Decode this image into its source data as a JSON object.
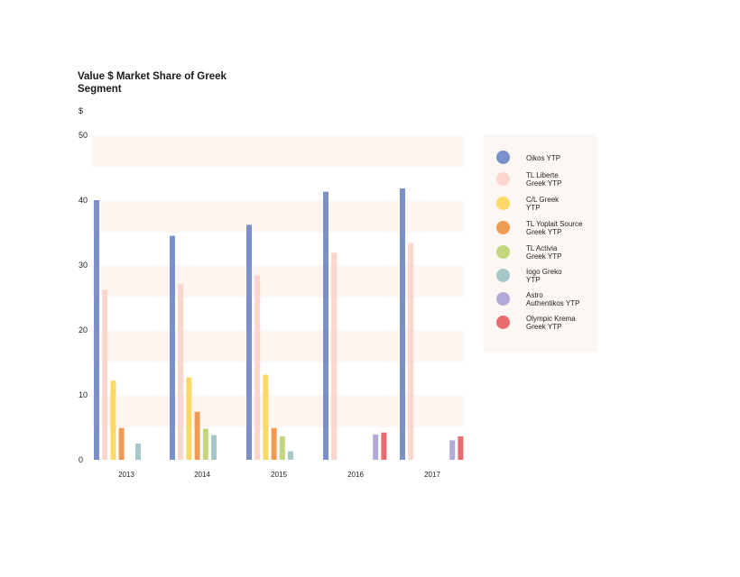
{
  "chart_data": {
    "type": "bar",
    "title": "Value $ Market Share of Greek Segment",
    "ylabel": "$",
    "xlabel": "",
    "ylim": [
      0,
      50
    ],
    "yticks": [
      0,
      10,
      20,
      30,
      40,
      50
    ],
    "categories": [
      "2013",
      "2014",
      "2015",
      "2016",
      "2017"
    ],
    "grid": "alternating shaded horizontal bands",
    "legend_position": "right",
    "series": [
      {
        "name": "Oikos YTP",
        "color": "#7b8fc9",
        "values": [
          40.0,
          34.5,
          36.2,
          41.3,
          41.8
        ]
      },
      {
        "name": "TL Liberte Greek YTP",
        "color": "#fbd6cc",
        "values": [
          26.2,
          27.1,
          28.4,
          31.9,
          33.4
        ]
      },
      {
        "name": "C/L Greek YTP",
        "color": "#fcd967",
        "values": [
          12.2,
          12.7,
          13.1,
          null,
          null
        ]
      },
      {
        "name": "TL Yoplait Source Greek YTP",
        "color": "#ef9a55",
        "values": [
          4.9,
          7.4,
          4.9,
          null,
          null
        ]
      },
      {
        "name": "TL Activia Greek YTP",
        "color": "#c3d67e",
        "values": [
          null,
          4.8,
          3.6,
          null,
          null
        ]
      },
      {
        "name": "Iogo Greko YTP",
        "color": "#a6c7c7",
        "values": [
          2.5,
          3.8,
          1.3,
          null,
          null
        ]
      },
      {
        "name": "Astro Authentikos YTP",
        "color": "#b3a9d8",
        "values": [
          null,
          null,
          null,
          3.9,
          3.0
        ]
      },
      {
        "name": "Olympic Krema Greek YTP",
        "color": "#e86b6d",
        "values": [
          null,
          null,
          null,
          4.2,
          3.6
        ]
      }
    ]
  },
  "legend": {
    "labels": [
      "Oikos YTP",
      "TL Liberte\nGreek YTP",
      "C/L Greek\nYTP",
      "TL Yoplait Source\nGreek YTP",
      "TL Activia\nGreek YTP",
      "Iogo Greko\nYTP",
      "Astro\nAuthentikos YTP",
      "Olympic Krema\nGreek YTP"
    ]
  }
}
